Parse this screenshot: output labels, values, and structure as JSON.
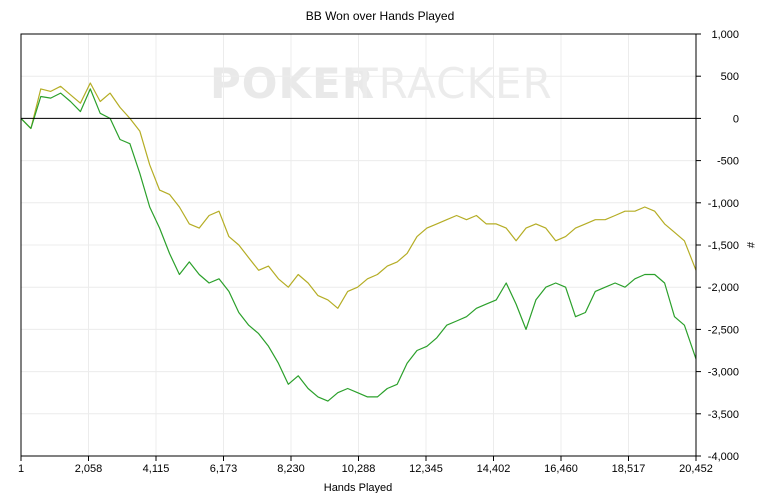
{
  "watermark": {
    "left": "POKER",
    "right": "TRACKER"
  },
  "chart_data": {
    "type": "line",
    "title": "BB Won over Hands Played",
    "xlabel": "Hands Played",
    "ylabel": "#",
    "x_tick_labels": [
      "1",
      "2,058",
      "4,115",
      "6,173",
      "8,230",
      "10,288",
      "12,345",
      "14,402",
      "16,460",
      "18,517",
      "20,452"
    ],
    "y_tick_labels": [
      "1,000",
      "500",
      "0",
      "-500",
      "-1,000",
      "-1,500",
      "-2,000",
      "-2,500",
      "-3,000",
      "-3,500",
      "-4,000"
    ],
    "xlim": [
      1,
      20452
    ],
    "ylim": [
      -4000,
      1000
    ],
    "grid": true,
    "series": [
      {
        "color": "#b5ad25",
        "x": [
          1,
          300,
          600,
          900,
          1200,
          1500,
          1800,
          2100,
          2400,
          2700,
          3000,
          3300,
          3600,
          3900,
          4200,
          4500,
          4800,
          5100,
          5400,
          5700,
          6000,
          6300,
          6600,
          6900,
          7200,
          7500,
          7800,
          8100,
          8400,
          8700,
          9000,
          9300,
          9600,
          9900,
          10200,
          10500,
          10800,
          11100,
          11400,
          11700,
          12000,
          12300,
          12600,
          12900,
          13200,
          13500,
          13800,
          14100,
          14400,
          14700,
          15000,
          15300,
          15600,
          15900,
          16200,
          16500,
          16800,
          17100,
          17400,
          17700,
          18000,
          18300,
          18600,
          18900,
          19200,
          19500,
          19800,
          20100,
          20452
        ],
        "values": [
          0,
          -120,
          350,
          320,
          380,
          280,
          180,
          420,
          200,
          300,
          130,
          0,
          -150,
          -550,
          -850,
          -900,
          -1050,
          -1250,
          -1300,
          -1150,
          -1100,
          -1400,
          -1500,
          -1650,
          -1800,
          -1750,
          -1900,
          -2000,
          -1850,
          -1950,
          -2100,
          -2150,
          -2250,
          -2050,
          -2000,
          -1900,
          -1850,
          -1750,
          -1700,
          -1600,
          -1400,
          -1300,
          -1250,
          -1200,
          -1150,
          -1200,
          -1150,
          -1250,
          -1250,
          -1300,
          -1450,
          -1300,
          -1250,
          -1300,
          -1450,
          -1400,
          -1300,
          -1250,
          -1200,
          -1200,
          -1150,
          -1100,
          -1100,
          -1050,
          -1100,
          -1250,
          -1350,
          -1450,
          -1800
        ]
      },
      {
        "color": "#2ba02b",
        "x": [
          1,
          300,
          600,
          900,
          1200,
          1500,
          1800,
          2100,
          2400,
          2700,
          3000,
          3300,
          3600,
          3900,
          4200,
          4500,
          4800,
          5100,
          5400,
          5700,
          6000,
          6300,
          6600,
          6900,
          7200,
          7500,
          7800,
          8100,
          8400,
          8700,
          9000,
          9300,
          9600,
          9900,
          10200,
          10500,
          10800,
          11100,
          11400,
          11700,
          12000,
          12300,
          12600,
          12900,
          13200,
          13500,
          13800,
          14100,
          14400,
          14700,
          15000,
          15300,
          15600,
          15900,
          16200,
          16500,
          16800,
          17100,
          17400,
          17700,
          18000,
          18300,
          18600,
          18900,
          19200,
          19500,
          19800,
          20100,
          20452
        ],
        "values": [
          0,
          -120,
          260,
          240,
          300,
          200,
          80,
          350,
          60,
          0,
          -250,
          -300,
          -650,
          -1050,
          -1300,
          -1600,
          -1850,
          -1700,
          -1850,
          -1950,
          -1900,
          -2050,
          -2300,
          -2450,
          -2550,
          -2700,
          -2900,
          -3150,
          -3050,
          -3200,
          -3300,
          -3350,
          -3250,
          -3200,
          -3250,
          -3300,
          -3300,
          -3200,
          -3150,
          -2900,
          -2750,
          -2700,
          -2600,
          -2450,
          -2400,
          -2350,
          -2250,
          -2200,
          -2150,
          -1950,
          -2200,
          -2500,
          -2150,
          -2000,
          -1950,
          -2000,
          -2350,
          -2300,
          -2050,
          -2000,
          -1950,
          -2000,
          -1900,
          -1850,
          -1850,
          -1950,
          -2350,
          -2450,
          -2850
        ]
      }
    ]
  }
}
